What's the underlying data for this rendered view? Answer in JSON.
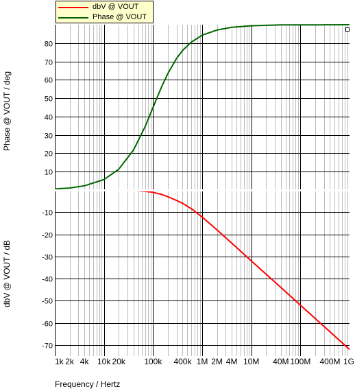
{
  "legend": [
    {
      "label": "dbV @ VOUT",
      "color": "#ff0000"
    },
    {
      "label": "Phase @ VOUT",
      "color": "#006600"
    }
  ],
  "xlabel": "Frequency / Hertz",
  "chart_data": [
    {
      "type": "line",
      "ylabel": "Phase @ VOUT / deg",
      "xscale": "log",
      "xlim": [
        1000,
        1000000000
      ],
      "ylim": [
        0,
        90
      ],
      "yticks": [
        10,
        20,
        30,
        40,
        50,
        60,
        70,
        80
      ],
      "grid": true,
      "series": [
        {
          "name": "Phase @ VOUT",
          "color": "#006600",
          "x": [
            1000,
            2000,
            4000,
            10000,
            20000,
            40000,
            70000,
            100000,
            150000,
            200000,
            300000,
            400000,
            600000,
            1000000,
            2000000,
            4000000,
            10000000,
            40000000,
            100000000,
            1000000000
          ],
          "y": [
            0.6,
            1.1,
            2.3,
            5.7,
            11.3,
            21.8,
            34.9,
            45.0,
            56.3,
            63.4,
            71.6,
            76.0,
            80.5,
            84.3,
            87.1,
            88.6,
            89.4,
            89.9,
            89.9,
            90.0
          ]
        }
      ]
    },
    {
      "type": "line",
      "ylabel": "dbV @ VOUT / dB",
      "xscale": "log",
      "xlim": [
        1000,
        1000000000
      ],
      "ylim": [
        -75,
        0
      ],
      "yticks": [
        -10,
        -20,
        -30,
        -40,
        -50,
        -60,
        -70
      ],
      "grid": true,
      "series": [
        {
          "name": "dbV @ VOUT",
          "color": "#ff0000",
          "x": [
            1000,
            2000,
            4000,
            10000,
            20000,
            40000,
            70000,
            100000,
            150000,
            200000,
            300000,
            400000,
            600000,
            1000000,
            2000000,
            4000000,
            10000000,
            40000000,
            100000000,
            1000000000
          ],
          "y": [
            0.0,
            0.0,
            0.0,
            0.0,
            -0.1,
            -0.2,
            -0.6,
            -1.0,
            -2.0,
            -3.0,
            -4.7,
            -6.0,
            -8.4,
            -12.2,
            -18.0,
            -24.0,
            -32.0,
            -44.0,
            -52.0,
            -72.0
          ]
        }
      ]
    }
  ],
  "xticks": [
    {
      "value": 1000,
      "label": "1k"
    },
    {
      "value": 2000,
      "label": "2k"
    },
    {
      "value": 4000,
      "label": "4k"
    },
    {
      "value": 10000,
      "label": "10k"
    },
    {
      "value": 20000,
      "label": "20k"
    },
    {
      "value": 100000,
      "label": "100k"
    },
    {
      "value": 400000,
      "label": "400k"
    },
    {
      "value": 1000000,
      "label": "1M"
    },
    {
      "value": 2000000,
      "label": "2M"
    },
    {
      "value": 4000000,
      "label": "4M"
    },
    {
      "value": 10000000,
      "label": "10M"
    },
    {
      "value": 40000000,
      "label": "40M"
    },
    {
      "value": 100000000,
      "label": "100M"
    },
    {
      "value": 400000000,
      "label": "400M"
    },
    {
      "value": 1000000000,
      "label": "1G"
    }
  ]
}
